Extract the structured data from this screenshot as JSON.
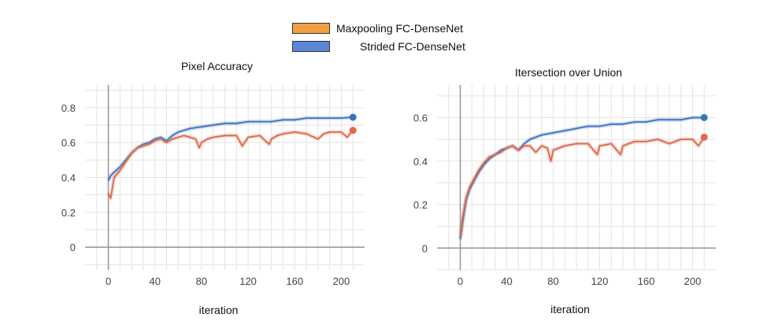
{
  "legend": {
    "items": [
      {
        "label": "Maxpooling FC-DenseNet",
        "color": "#f0a040"
      },
      {
        "label": "Strided FC-DenseNet",
        "color": "#5b86d6"
      }
    ]
  },
  "chart_data": [
    {
      "type": "line",
      "title": "Pixel Accuracy",
      "xlabel": "iteration",
      "ylabel": "",
      "xlim": [
        -20,
        220
      ],
      "ylim": [
        -0.13,
        0.93
      ],
      "xticks": [
        0,
        40,
        80,
        120,
        160,
        200
      ],
      "yticks": [
        0,
        0.2,
        0.4,
        0.6,
        0.8
      ],
      "grid": true,
      "series": [
        {
          "name": "Strided FC-DenseNet",
          "color": "#3b73c4",
          "x": [
            0,
            2,
            5,
            10,
            15,
            20,
            25,
            30,
            35,
            40,
            45,
            50,
            55,
            60,
            65,
            70,
            80,
            90,
            100,
            110,
            120,
            130,
            140,
            150,
            160,
            170,
            180,
            190,
            200,
            210
          ],
          "values": [
            0.38,
            0.41,
            0.43,
            0.46,
            0.5,
            0.54,
            0.57,
            0.59,
            0.6,
            0.62,
            0.63,
            0.61,
            0.64,
            0.66,
            0.67,
            0.68,
            0.69,
            0.7,
            0.71,
            0.71,
            0.72,
            0.72,
            0.72,
            0.73,
            0.73,
            0.74,
            0.74,
            0.74,
            0.74,
            0.745
          ]
        },
        {
          "name": "Maxpooling FC-DenseNet",
          "color": "#e06848",
          "x": [
            0,
            2,
            5,
            10,
            15,
            20,
            25,
            30,
            35,
            40,
            45,
            50,
            55,
            60,
            65,
            70,
            75,
            78,
            80,
            85,
            90,
            100,
            110,
            115,
            120,
            130,
            138,
            140,
            145,
            150,
            160,
            170,
            180,
            185,
            190,
            200,
            205,
            210
          ],
          "values": [
            0.31,
            0.28,
            0.4,
            0.44,
            0.49,
            0.54,
            0.57,
            0.58,
            0.59,
            0.61,
            0.62,
            0.6,
            0.62,
            0.63,
            0.64,
            0.63,
            0.62,
            0.57,
            0.6,
            0.62,
            0.63,
            0.64,
            0.64,
            0.58,
            0.63,
            0.64,
            0.59,
            0.62,
            0.64,
            0.65,
            0.66,
            0.65,
            0.62,
            0.65,
            0.66,
            0.66,
            0.63,
            0.67
          ]
        }
      ]
    },
    {
      "type": "line",
      "title": "Itersection over Union",
      "xlabel": "iteration",
      "ylabel": "",
      "xlim": [
        -20,
        220
      ],
      "ylim": [
        -0.1,
        0.75
      ],
      "xticks": [
        0,
        40,
        80,
        120,
        160,
        200
      ],
      "yticks": [
        0,
        0.2,
        0.4,
        0.6
      ],
      "grid": true,
      "series": [
        {
          "name": "Strided FC-DenseNet",
          "color": "#3b73c4",
          "x": [
            0,
            2,
            5,
            8,
            12,
            16,
            20,
            25,
            30,
            35,
            40,
            45,
            50,
            55,
            60,
            65,
            70,
            80,
            90,
            100,
            110,
            120,
            130,
            140,
            150,
            160,
            170,
            180,
            190,
            200,
            210
          ],
          "values": [
            0.04,
            0.12,
            0.22,
            0.27,
            0.31,
            0.35,
            0.38,
            0.41,
            0.43,
            0.45,
            0.46,
            0.47,
            0.45,
            0.48,
            0.5,
            0.51,
            0.52,
            0.53,
            0.54,
            0.55,
            0.56,
            0.56,
            0.57,
            0.57,
            0.58,
            0.58,
            0.59,
            0.59,
            0.59,
            0.6,
            0.6
          ]
        },
        {
          "name": "Maxpooling FC-DenseNet",
          "color": "#e06848",
          "x": [
            0,
            2,
            5,
            8,
            12,
            16,
            20,
            25,
            30,
            35,
            40,
            45,
            50,
            55,
            60,
            65,
            70,
            75,
            78,
            80,
            90,
            100,
            110,
            118,
            120,
            130,
            138,
            140,
            150,
            160,
            170,
            180,
            190,
            200,
            205,
            210
          ],
          "values": [
            0.05,
            0.14,
            0.23,
            0.28,
            0.32,
            0.36,
            0.39,
            0.42,
            0.43,
            0.44,
            0.46,
            0.47,
            0.45,
            0.47,
            0.47,
            0.44,
            0.47,
            0.46,
            0.4,
            0.45,
            0.47,
            0.48,
            0.48,
            0.43,
            0.47,
            0.48,
            0.43,
            0.47,
            0.49,
            0.49,
            0.5,
            0.48,
            0.5,
            0.5,
            0.47,
            0.51
          ]
        }
      ]
    }
  ]
}
